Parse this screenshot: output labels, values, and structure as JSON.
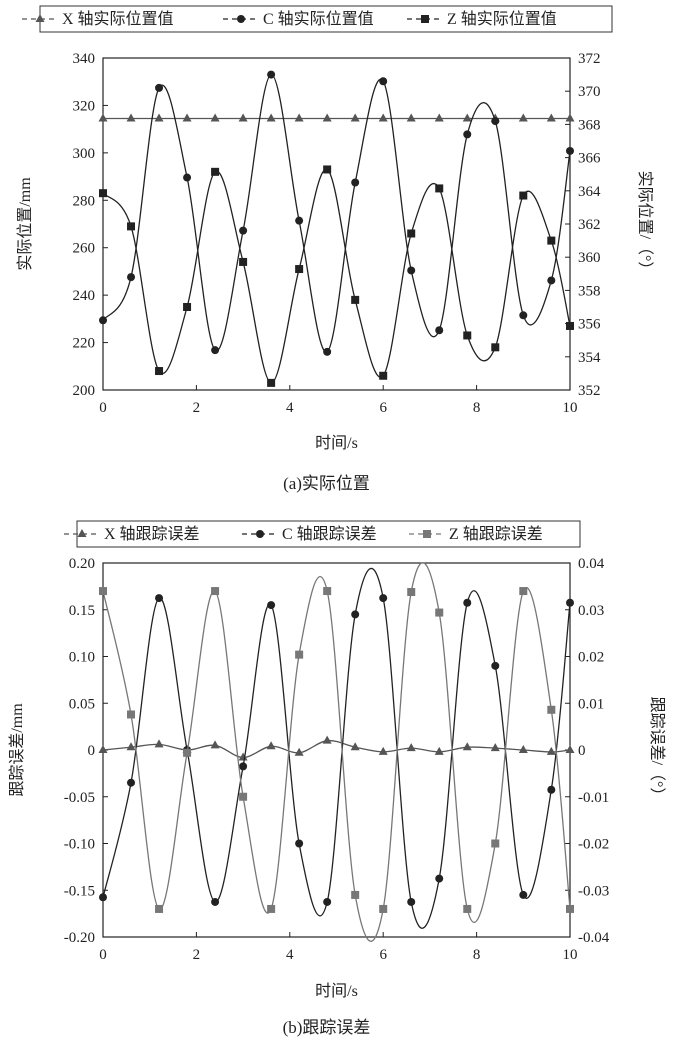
{
  "chart_data": [
    {
      "id": "a",
      "type": "line",
      "caption": "(a)实际位置",
      "xlabel": "时间/s",
      "ylabel_left": "实际位置/mm",
      "ylabel_right": "实际位置/（°）",
      "xlim": [
        0,
        10
      ],
      "ylim_left": [
        200,
        340
      ],
      "ylim_right": [
        352,
        372
      ],
      "xticks": [
        "0",
        "2",
        "4",
        "6",
        "8",
        "10"
      ],
      "yticks_left": [
        "200",
        "220",
        "240",
        "260",
        "280",
        "300",
        "320",
        "340"
      ],
      "yticks_right": [
        "352",
        "354",
        "356",
        "358",
        "360",
        "362",
        "364",
        "366",
        "368",
        "370",
        "372"
      ],
      "series": [
        {
          "name": "X 轴实际位置值",
          "axis": "left",
          "marker": "triangle",
          "color": "#555555",
          "x": [
            0,
            0.6,
            1.2,
            1.8,
            2.4,
            3.0,
            3.6,
            4.2,
            4.8,
            5.4,
            6.0,
            6.6,
            7.2,
            7.8,
            8.4,
            9.0,
            9.6,
            10
          ],
          "y": [
            314.5,
            314.5,
            314.5,
            314.5,
            314.5,
            314.5,
            314.5,
            314.5,
            314.5,
            314.5,
            314.5,
            314.5,
            314.5,
            314.5,
            314.5,
            314.5,
            314.5,
            314.5
          ]
        },
        {
          "name": "C 轴实际位置值",
          "axis": "right",
          "marker": "circle",
          "color": "#222222",
          "x": [
            0,
            0.6,
            1.2,
            1.8,
            2.4,
            3.0,
            3.6,
            4.2,
            4.8,
            5.4,
            6.0,
            6.6,
            7.2,
            7.8,
            8.4,
            9.0,
            9.6,
            10
          ],
          "y": [
            356.2,
            358.8,
            370.2,
            364.8,
            354.4,
            361.6,
            371.0,
            362.2,
            354.3,
            364.5,
            370.6,
            359.2,
            355.6,
            367.4,
            368.2,
            356.5,
            358.6,
            366.4
          ]
        },
        {
          "name": "Z 轴实际位置值",
          "axis": "left",
          "marker": "square",
          "color": "#222222",
          "x": [
            0,
            0.6,
            1.2,
            1.8,
            2.4,
            3.0,
            3.6,
            4.2,
            4.8,
            5.4,
            6.0,
            6.6,
            7.2,
            7.8,
            8.4,
            9.0,
            9.6,
            10
          ],
          "y": [
            283,
            269,
            208,
            235,
            292,
            254,
            203,
            251,
            293,
            238,
            206,
            266,
            285,
            223,
            218,
            282,
            263,
            227
          ]
        }
      ]
    },
    {
      "id": "b",
      "type": "line",
      "caption": "(b)跟踪误差",
      "xlabel": "时间/s",
      "ylabel_left": "跟踪误差/mm",
      "ylabel_right": "跟踪误差/（°）",
      "xlim": [
        0,
        10
      ],
      "ylim_left": [
        -0.2,
        0.2
      ],
      "ylim_right": [
        -0.04,
        0.04
      ],
      "xticks": [
        "0",
        "2",
        "4",
        "6",
        "8",
        "10"
      ],
      "yticks_left": [
        "-0.20",
        "-0.15",
        "-0.10",
        "-0.05",
        "0",
        "0.05",
        "0.10",
        "0.15",
        "0.20"
      ],
      "yticks_right": [
        "-0.04",
        "-0.03",
        "-0.02",
        "-0.01",
        "0",
        "0.01",
        "0.02",
        "0.03",
        "0.04"
      ],
      "series": [
        {
          "name": "X 轴跟踪误差",
          "axis": "left",
          "marker": "triangle",
          "color": "#555555",
          "x": [
            0,
            0.6,
            1.2,
            1.8,
            2.4,
            3.0,
            3.6,
            4.2,
            4.8,
            5.4,
            6.0,
            6.6,
            7.2,
            7.8,
            8.4,
            9.0,
            9.6,
            10
          ],
          "y": [
            0.0,
            0.003,
            0.006,
            0.0,
            0.005,
            -0.008,
            0.004,
            -0.003,
            0.01,
            0.003,
            -0.002,
            0.002,
            -0.002,
            0.003,
            0.002,
            0.0,
            -0.002,
            0.0
          ]
        },
        {
          "name": "C 轴跟踪误差",
          "axis": "right",
          "marker": "circle",
          "color": "#222222",
          "x": [
            0,
            0.6,
            1.2,
            1.8,
            2.4,
            3.0,
            3.6,
            4.2,
            4.8,
            5.4,
            6.0,
            6.6,
            7.2,
            7.8,
            8.4,
            9.0,
            9.6,
            10
          ],
          "y": [
            -0.0315,
            -0.007,
            0.0325,
            0.0,
            -0.0325,
            -0.0035,
            0.031,
            -0.02,
            -0.0325,
            0.029,
            0.0325,
            -0.0325,
            -0.0275,
            0.0315,
            0.018,
            -0.031,
            -0.0085,
            0.0315
          ]
        },
        {
          "name": "Z 轴跟踪误差",
          "axis": "left",
          "marker": "square",
          "color": "#777777",
          "x": [
            0,
            0.6,
            1.2,
            1.8,
            2.4,
            3.0,
            3.6,
            4.2,
            4.8,
            5.4,
            6.0,
            6.6,
            7.2,
            7.8,
            8.4,
            9.0,
            9.6,
            10
          ],
          "y": [
            0.17,
            0.038,
            -0.17,
            -0.003,
            0.17,
            -0.05,
            -0.17,
            0.102,
            0.17,
            -0.155,
            -0.17,
            0.169,
            0.147,
            -0.17,
            -0.1,
            0.17,
            0.043,
            -0.17
          ]
        }
      ]
    }
  ]
}
